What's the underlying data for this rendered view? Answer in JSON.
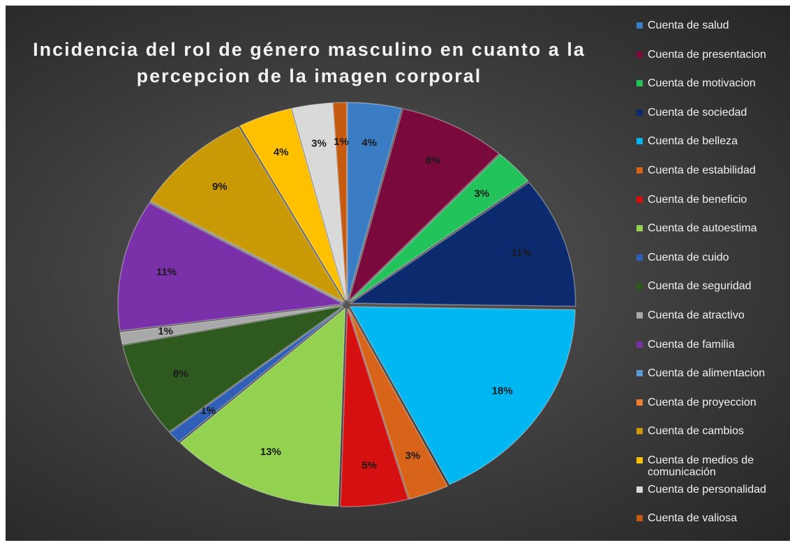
{
  "chart_data": {
    "type": "pie",
    "title": "Incidencia del rol de género masculino en cuanto a la percepcion de la imagen corporal",
    "categories": [
      "Cuenta de salud",
      "Cuenta de presentacion",
      "Cuenta de motivacion",
      "Cuenta de sociedad",
      "Cuenta de belleza",
      "Cuenta de estabilidad",
      "Cuenta de beneficio",
      "Cuenta de autoestima",
      "Cuenta de cuido",
      "Cuenta de seguridad",
      "Cuenta de atractivo",
      "Cuenta de familia",
      "Cuenta de alimentacion",
      "Cuenta de proyeccion",
      "Cuenta de cambios",
      "Cuenta de medios de comunicación",
      "Cuenta de personalidad",
      "Cuenta de valiosa"
    ],
    "values": [
      4,
      8,
      3,
      11,
      18,
      3,
      5,
      13,
      1,
      8,
      1,
      11,
      0,
      0,
      9,
      4,
      3,
      1
    ],
    "value_labels": [
      "4%",
      "8%",
      "3%",
      "11%",
      "18%",
      "3%",
      "5%",
      "13%",
      "1%",
      "8%",
      "1%",
      "11%",
      null,
      null,
      "9%",
      "4%",
      "3%",
      "1%"
    ],
    "colors": [
      "#3a7dc4",
      "#7a0a3c",
      "#23c35c",
      "#0c2a6e",
      "#00b7f1",
      "#d8641a",
      "#d61010",
      "#93d150",
      "#2f5fb6",
      "#2f5a1f",
      "#a9a9a9",
      "#7a30a8",
      "#5b9bd5",
      "#ed7d31",
      "#c99a05",
      "#ffc000",
      "#d9d9d9",
      "#c55a11"
    ],
    "legend": "right"
  }
}
